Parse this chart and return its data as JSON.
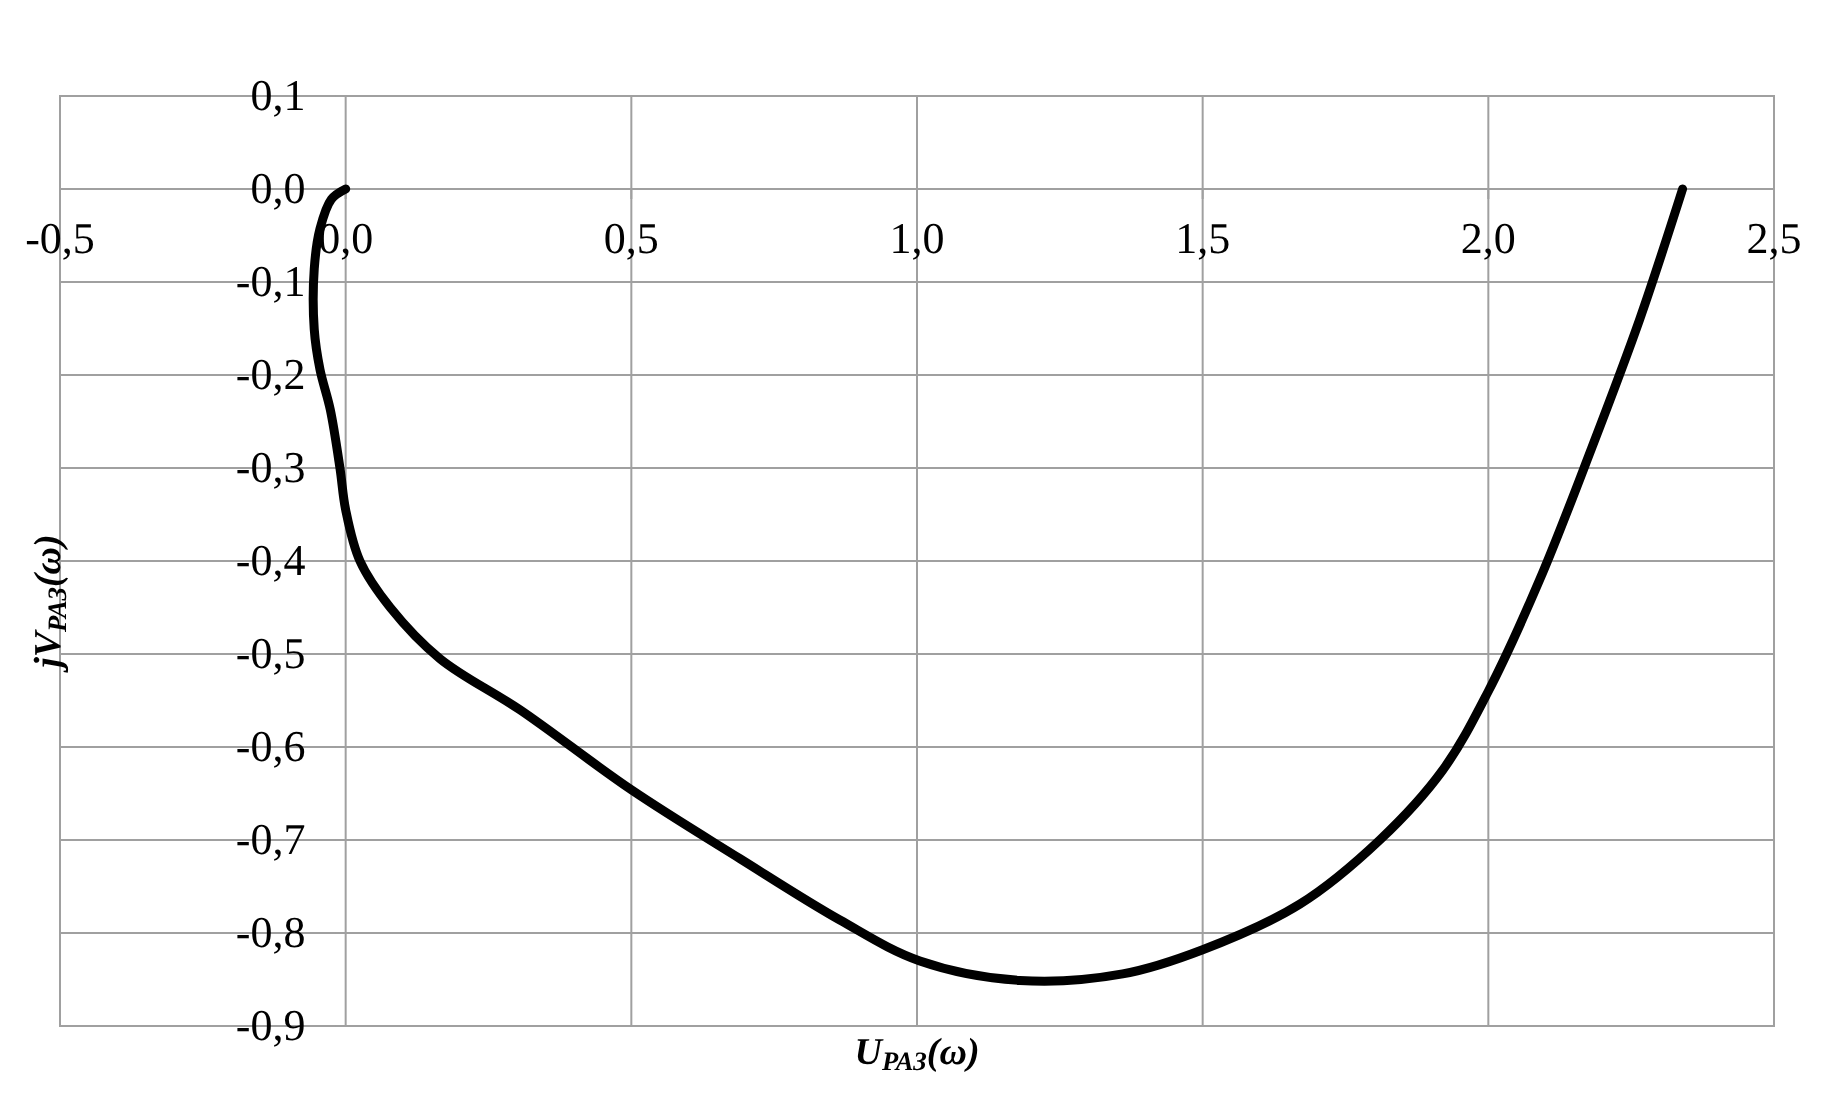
{
  "chart_data": {
    "type": "line",
    "xlabel": "U$_{РАЗ}$(ω)",
    "ylabel": "jV$_{РАЗ}$(ω)",
    "xlim": [
      -0.5,
      2.5
    ],
    "ylim": [
      -0.9,
      0.1
    ],
    "xticks": [
      {
        "value": -0.5,
        "label": "-0,5"
      },
      {
        "value": 0,
        "label": "0,0"
      },
      {
        "value": 0.5,
        "label": "0,5"
      },
      {
        "value": 1,
        "label": "1,0"
      },
      {
        "value": 1.5,
        "label": "1,5"
      },
      {
        "value": 2,
        "label": "2,0"
      },
      {
        "value": 2.5,
        "label": "2,5"
      }
    ],
    "yticks": [
      {
        "value": -0.9,
        "label": "-0,9"
      },
      {
        "value": -0.8,
        "label": "-0,8"
      },
      {
        "value": -0.7,
        "label": "-0,7"
      },
      {
        "value": -0.6,
        "label": "-0,6"
      },
      {
        "value": -0.5,
        "label": "-0,5"
      },
      {
        "value": -0.4,
        "label": "-0,4"
      },
      {
        "value": -0.3,
        "label": "-0,3"
      },
      {
        "value": -0.2,
        "label": "-0,2"
      },
      {
        "value": -0.1,
        "label": "-0,1"
      },
      {
        "value": 0,
        "label": "0,0"
      },
      {
        "value": 0.1,
        "label": "0,1"
      }
    ],
    "grid": true,
    "marker": "none",
    "line_style": "solid",
    "series": [
      {
        "color": "#000000",
        "x": [
          0,
          -0.025,
          -0.045,
          -0.055,
          -0.055,
          -0.045,
          -0.027,
          -0.01,
          0,
          0.025,
          0.078,
          0.165,
          0.305,
          0.5,
          0.69,
          0.865,
          1.005,
          1.18,
          1.36,
          1.5,
          1.67,
          1.81,
          1.92,
          2.0,
          2.09,
          2.18,
          2.265,
          2.34
        ],
        "values": [
          0,
          -0.011,
          -0.043,
          -0.086,
          -0.151,
          -0.194,
          -0.237,
          -0.3,
          -0.345,
          -0.4,
          -0.45,
          -0.505,
          -0.56,
          -0.646,
          -0.72,
          -0.786,
          -0.83,
          -0.851,
          -0.844,
          -0.818,
          -0.769,
          -0.7,
          -0.625,
          -0.54,
          -0.42,
          -0.28,
          -0.14,
          0
        ]
      }
    ]
  }
}
